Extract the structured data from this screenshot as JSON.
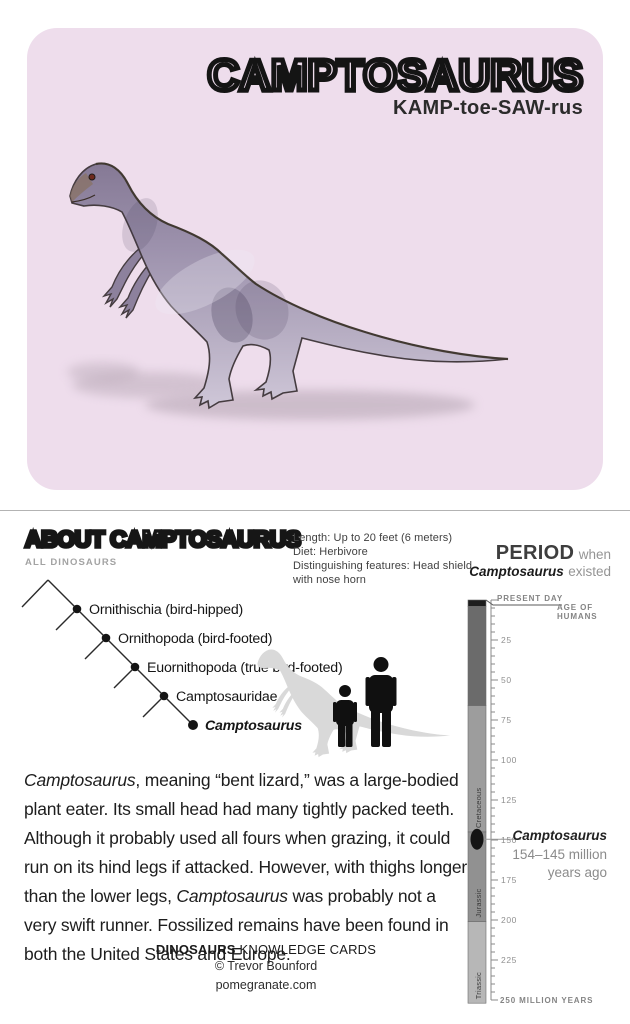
{
  "colors": {
    "card_background": "#eeddec",
    "lettering": "#141414",
    "muted_gray": "#949494",
    "timeline_marker": "#141414"
  },
  "card": {
    "title": "CAMPTOSAURUS",
    "pronunciation": "KAMP-toe-SAW-rus",
    "illustration": "camptosaurus-illustration"
  },
  "about": {
    "heading": "ABOUT CAMPTOSAURUS",
    "subheading": "ALL DINOSAURS",
    "facts": [
      "Length: Up to 20 feet (6 meters)",
      "Diet: Herbivore",
      "Distinguishing features: Head shield",
      "with nose horn"
    ],
    "description_segments": [
      {
        "t": "Camptosaurus",
        "i": 1
      },
      {
        "t": ", meaning “bent lizard,” was a large-bodied plant eater. Its small head had many tightly packed teeth. Although it probably used all fours when grazing, it could run on its hind legs if attacked. However, with thighs longer than the lower legs, ",
        "i": 0
      },
      {
        "t": "Camptosaurus",
        "i": 1
      },
      {
        "t": " was probably not a very swift runner. Fossilized remains have been found in both the United States and Europe.",
        "i": 0
      }
    ]
  },
  "cladogram": {
    "taxa": [
      "Ornithischia (bird-hipped)",
      "Ornithopoda (bird-footed)",
      "Euornithopoda (true bird-footed)",
      "Camptosauridae",
      "Camptosaurus"
    ]
  },
  "period_panel": {
    "heading_bold": "PERIOD",
    "heading_rest": "when",
    "subject": "Camptosaurus",
    "subject_rest": "existed",
    "present_day_label": "PRESENT DAY",
    "age_of_humans_lines": [
      "AGE OF",
      "HUMANS"
    ],
    "axis_end_label": "250 MILLION YEARS",
    "tick_labels": [
      25,
      50,
      75,
      100,
      125,
      150,
      175,
      200,
      225
    ],
    "axis_max_mya": 250,
    "periods": [
      {
        "name": "",
        "start": 0,
        "end": 4,
        "color": "#1d1d1d"
      },
      {
        "name": "",
        "start": 4,
        "end": 66,
        "color": "#6b6b6b"
      },
      {
        "name": "Cretaceous",
        "start": 66,
        "end": 145,
        "color": "#9d9d9d"
      },
      {
        "name": "Jurassic",
        "start": 145,
        "end": 201,
        "color": "#919191"
      },
      {
        "name": "Triassic",
        "start": 201,
        "end": 252,
        "color": "#b7b7b7"
      }
    ],
    "marker": {
      "label": "Camptosaurus",
      "detail1": "154–145 million",
      "detail2": "years ago",
      "position_mya": 149.5
    }
  },
  "footer": {
    "line1_bold": "DINOSAURS",
    "line1_rest": " KNOWLEDGE CARDS",
    "line2": "© Trevor Bounford",
    "line3": "pomegranate.com"
  }
}
